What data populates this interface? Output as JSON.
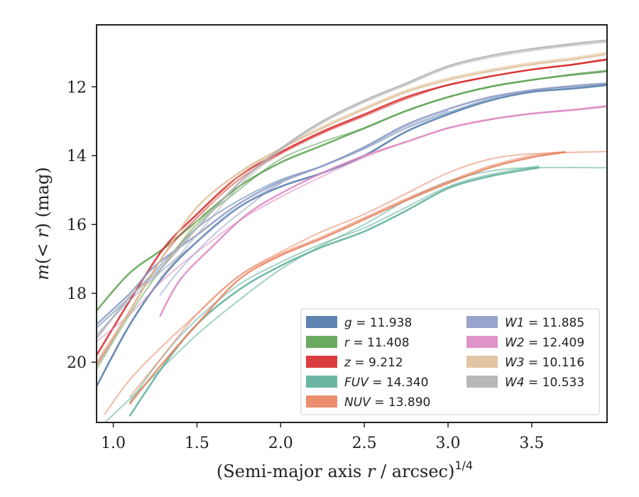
{
  "chart_data": {
    "type": "line",
    "xlabel": "(Semi-major axis r / arcsec)^{1/4}",
    "ylabel": "m(< r) (mag)",
    "xlim": [
      0.9,
      3.95
    ],
    "ylim": [
      21.75,
      10.2
    ],
    "y_inverted": true,
    "xticks": [
      "1.0",
      "1.5",
      "2.0",
      "2.5",
      "3.0",
      "3.5"
    ],
    "yticks": [
      "12",
      "14",
      "16",
      "18",
      "20"
    ],
    "grid": false,
    "legend_position": "lower-right",
    "series": [
      {
        "name": "g = 11.938",
        "color": "#4c78a8",
        "bands": [
          [
            [
              0.9,
              20.7
            ],
            [
              1.1,
              18.9
            ],
            [
              1.3,
              17.5
            ],
            [
              1.5,
              16.5
            ],
            [
              1.75,
              15.5
            ],
            [
              2.0,
              14.9
            ],
            [
              2.25,
              14.5
            ],
            [
              2.5,
              14.0
            ],
            [
              2.75,
              13.3
            ],
            [
              3.0,
              12.8
            ],
            [
              3.25,
              12.4
            ],
            [
              3.5,
              12.15
            ],
            [
              3.75,
              12.05
            ],
            [
              3.95,
              11.95
            ]
          ],
          [
            [
              0.9,
              19.0
            ],
            [
              1.1,
              18.1
            ],
            [
              1.3,
              17.1
            ],
            [
              1.5,
              16.1
            ],
            [
              1.75,
              15.3
            ],
            [
              2.0,
              14.7
            ],
            [
              2.25,
              14.3
            ],
            [
              2.5,
              13.8
            ],
            [
              2.75,
              13.2
            ],
            [
              3.0,
              12.75
            ],
            [
              3.25,
              12.35
            ],
            [
              3.5,
              12.1
            ],
            [
              3.75,
              12.0
            ],
            [
              3.95,
              11.93
            ]
          ]
        ]
      },
      {
        "name": "r = 11.408",
        "color": "#59a14f",
        "bands": [
          [
            [
              0.9,
              18.5
            ],
            [
              1.1,
              17.4
            ],
            [
              1.3,
              16.7
            ],
            [
              1.5,
              15.9
            ],
            [
              1.75,
              14.9
            ],
            [
              2.0,
              14.2
            ],
            [
              2.25,
              13.7
            ],
            [
              2.5,
              13.2
            ],
            [
              2.75,
              12.7
            ],
            [
              3.0,
              12.3
            ],
            [
              3.25,
              12.0
            ],
            [
              3.5,
              11.8
            ],
            [
              3.75,
              11.65
            ],
            [
              3.95,
              11.55
            ]
          ],
          [
            [
              0.9,
              20.2
            ],
            [
              1.1,
              18.6
            ],
            [
              1.3,
              17.2
            ],
            [
              1.5,
              16.0
            ],
            [
              1.75,
              15.0
            ],
            [
              2.0,
              14.1
            ],
            [
              2.25,
              13.6
            ],
            [
              2.5,
              13.2
            ],
            [
              2.75,
              12.7
            ],
            [
              3.0,
              12.3
            ],
            [
              3.25,
              12.0
            ],
            [
              3.5,
              11.8
            ],
            [
              3.75,
              11.63
            ],
            [
              3.95,
              11.52
            ]
          ]
        ]
      },
      {
        "name": "z = 9.212",
        "color": "#d62728",
        "bands": [
          [
            [
              0.9,
              19.8
            ],
            [
              1.1,
              18.2
            ],
            [
              1.3,
              16.7
            ],
            [
              1.5,
              15.7
            ],
            [
              1.75,
              14.6
            ],
            [
              2.0,
              13.9
            ],
            [
              2.25,
              13.3
            ],
            [
              2.5,
              12.8
            ],
            [
              2.75,
              12.3
            ],
            [
              3.0,
              11.95
            ],
            [
              3.25,
              11.7
            ],
            [
              3.5,
              11.5
            ],
            [
              3.75,
              11.35
            ],
            [
              3.95,
              11.2
            ]
          ],
          [
            [
              0.9,
              20.1
            ],
            [
              1.1,
              18.5
            ],
            [
              1.3,
              16.9
            ],
            [
              1.5,
              15.8
            ],
            [
              1.75,
              14.7
            ],
            [
              2.0,
              13.95
            ],
            [
              2.25,
              13.35
            ],
            [
              2.5,
              12.85
            ],
            [
              2.75,
              12.35
            ],
            [
              3.0,
              11.95
            ],
            [
              3.25,
              11.7
            ],
            [
              3.5,
              11.5
            ],
            [
              3.75,
              11.35
            ],
            [
              3.95,
              11.22
            ]
          ]
        ]
      },
      {
        "name": "FUV = 14.340",
        "color": "#5aae98",
        "bands": [
          [
            [
              1.1,
              21.55
            ],
            [
              1.3,
              20.1
            ],
            [
              1.5,
              18.9
            ],
            [
              1.75,
              17.9
            ],
            [
              2.0,
              17.2
            ],
            [
              2.25,
              16.65
            ],
            [
              2.5,
              16.2
            ],
            [
              2.75,
              15.6
            ],
            [
              3.0,
              14.95
            ],
            [
              3.25,
              14.6
            ],
            [
              3.54,
              14.35
            ]
          ],
          [
            [
              1.1,
              21.15
            ],
            [
              1.3,
              19.8
            ],
            [
              1.5,
              18.75
            ],
            [
              1.75,
              17.75
            ],
            [
              2.0,
              17.1
            ],
            [
              2.25,
              16.55
            ],
            [
              2.5,
              16.1
            ],
            [
              2.75,
              15.5
            ],
            [
              3.0,
              14.9
            ],
            [
              3.25,
              14.55
            ],
            [
              3.54,
              14.3
            ]
          ],
          [
            [
              0.95,
              21.75
            ],
            [
              1.2,
              20.6
            ],
            [
              1.5,
              19.2
            ],
            [
              1.75,
              18.2
            ],
            [
              2.0,
              17.3
            ],
            [
              2.25,
              16.6
            ],
            [
              2.5,
              16.0
            ],
            [
              2.75,
              15.3
            ],
            [
              3.0,
              14.75
            ],
            [
              3.25,
              14.45
            ],
            [
              3.5,
              14.35
            ],
            [
              3.95,
              14.35
            ]
          ]
        ]
      },
      {
        "name": "NUV = 13.890",
        "color": "#e8825f",
        "bands": [
          [
            [
              1.1,
              21.2
            ],
            [
              1.3,
              20.0
            ],
            [
              1.5,
              18.9
            ],
            [
              1.75,
              17.6
            ],
            [
              2.0,
              16.9
            ],
            [
              2.25,
              16.4
            ],
            [
              2.5,
              15.85
            ],
            [
              2.75,
              15.3
            ],
            [
              3.0,
              14.8
            ],
            [
              3.25,
              14.35
            ],
            [
              3.5,
              14.05
            ],
            [
              3.7,
              13.9
            ]
          ],
          [
            [
              1.1,
              21.0
            ],
            [
              1.3,
              19.8
            ],
            [
              1.5,
              18.6
            ],
            [
              1.75,
              17.5
            ],
            [
              2.0,
              16.85
            ],
            [
              2.25,
              16.35
            ],
            [
              2.5,
              15.8
            ],
            [
              2.75,
              15.25
            ],
            [
              3.0,
              14.75
            ],
            [
              3.25,
              14.3
            ],
            [
              3.5,
              14.0
            ],
            [
              3.7,
              13.88
            ]
          ],
          [
            [
              0.95,
              21.5
            ],
            [
              1.1,
              20.5
            ],
            [
              1.3,
              19.5
            ],
            [
              1.5,
              18.6
            ],
            [
              1.75,
              17.5
            ],
            [
              2.0,
              16.8
            ],
            [
              2.25,
              16.2
            ],
            [
              2.5,
              15.7
            ],
            [
              2.75,
              15.1
            ],
            [
              3.0,
              14.5
            ],
            [
              3.25,
              14.1
            ],
            [
              3.5,
              13.95
            ],
            [
              3.95,
              13.88
            ]
          ]
        ]
      },
      {
        "name": "W1 = 11.885",
        "color": "#8d9ac6",
        "bands": [
          [
            [
              0.9,
              18.9
            ],
            [
              1.1,
              18.0
            ],
            [
              1.25,
              17.2
            ],
            [
              1.5,
              16.3
            ],
            [
              1.75,
              15.4
            ],
            [
              2.0,
              14.75
            ],
            [
              2.25,
              14.3
            ],
            [
              2.5,
              13.75
            ],
            [
              2.75,
              13.1
            ],
            [
              3.0,
              12.65
            ],
            [
              3.25,
              12.3
            ],
            [
              3.5,
              12.1
            ],
            [
              3.75,
              11.97
            ],
            [
              3.95,
              11.9
            ]
          ],
          [
            [
              1.28,
              18.05
            ],
            [
              1.4,
              17.3
            ],
            [
              1.6,
              16.3
            ],
            [
              1.8,
              15.5
            ],
            [
              2.0,
              14.8
            ],
            [
              2.25,
              14.3
            ],
            [
              2.5,
              13.75
            ],
            [
              2.75,
              13.15
            ],
            [
              3.0,
              12.7
            ]
          ],
          [
            [
              0.9,
              19.2
            ],
            [
              1.1,
              18.2
            ],
            [
              1.3,
              17.3
            ],
            [
              1.5,
              16.5
            ],
            [
              1.75,
              15.5
            ],
            [
              2.0,
              14.8
            ]
          ]
        ]
      },
      {
        "name": "W2 = 12.409",
        "color": "#dc88c2",
        "bands": [
          [
            [
              1.28,
              18.65
            ],
            [
              1.4,
              17.6
            ],
            [
              1.6,
              16.6
            ],
            [
              1.8,
              15.7
            ],
            [
              2.0,
              15.1
            ],
            [
              2.25,
              14.5
            ],
            [
              2.5,
              14.0
            ],
            [
              2.75,
              13.6
            ],
            [
              3.0,
              13.2
            ],
            [
              3.25,
              12.95
            ],
            [
              3.5,
              12.78
            ],
            [
              3.75,
              12.67
            ],
            [
              3.95,
              12.57
            ]
          ],
          [
            [
              0.9,
              19.4
            ],
            [
              1.1,
              18.6
            ],
            [
              1.3,
              17.6
            ],
            [
              1.5,
              16.8
            ],
            [
              1.75,
              15.9
            ],
            [
              2.0,
              15.2
            ],
            [
              2.25,
              14.6
            ],
            [
              2.5,
              14.05
            ],
            [
              2.75,
              13.6
            ],
            [
              3.0,
              13.2
            ],
            [
              3.25,
              12.95
            ],
            [
              3.5,
              12.78
            ],
            [
              3.75,
              12.66
            ],
            [
              3.95,
              12.55
            ]
          ]
        ]
      },
      {
        "name": "W3 = 10.116",
        "color": "#dfbf98",
        "bands": [
          [
            [
              0.9,
              20.0
            ],
            [
              1.1,
              18.5
            ],
            [
              1.3,
              16.9
            ],
            [
              1.5,
              15.5
            ],
            [
              1.75,
              14.5
            ],
            [
              2.0,
              13.8
            ],
            [
              2.25,
              13.2
            ],
            [
              2.5,
              12.65
            ],
            [
              2.75,
              12.15
            ],
            [
              3.0,
              11.8
            ],
            [
              3.25,
              11.55
            ],
            [
              3.5,
              11.35
            ],
            [
              3.75,
              11.2
            ],
            [
              3.95,
              11.05
            ]
          ],
          [
            [
              1.3,
              17.2
            ],
            [
              1.5,
              15.9
            ],
            [
              1.75,
              14.6
            ],
            [
              2.0,
              13.8
            ],
            [
              2.25,
              13.15
            ],
            [
              2.5,
              12.6
            ],
            [
              2.75,
              12.1
            ],
            [
              3.0,
              11.75
            ],
            [
              3.25,
              11.5
            ],
            [
              3.5,
              11.3
            ],
            [
              3.75,
              11.15
            ],
            [
              3.95,
              11.0
            ]
          ]
        ]
      },
      {
        "name": "W4 = 10.533",
        "color": "#b0b0b0",
        "bands": [
          [
            [
              0.9,
              19.3
            ],
            [
              1.1,
              18.1
            ],
            [
              1.28,
              17.3
            ],
            [
              1.5,
              16.1
            ],
            [
              1.75,
              14.8
            ],
            [
              2.0,
              13.8
            ],
            [
              2.25,
              13.0
            ],
            [
              2.5,
              12.4
            ],
            [
              2.75,
              11.9
            ],
            [
              3.0,
              11.4
            ],
            [
              3.25,
              11.1
            ],
            [
              3.5,
              10.9
            ],
            [
              3.75,
              10.75
            ],
            [
              3.95,
              10.65
            ]
          ],
          [
            [
              1.28,
              17.55
            ],
            [
              1.5,
              16.3
            ],
            [
              1.75,
              14.9
            ],
            [
              2.0,
              13.85
            ],
            [
              2.25,
              13.05
            ],
            [
              2.5,
              12.45
            ],
            [
              2.75,
              11.95
            ],
            [
              3.0,
              11.45
            ],
            [
              3.25,
              11.15
            ],
            [
              3.5,
              10.95
            ],
            [
              3.75,
              10.8
            ],
            [
              3.95,
              10.7
            ]
          ]
        ]
      }
    ]
  }
}
